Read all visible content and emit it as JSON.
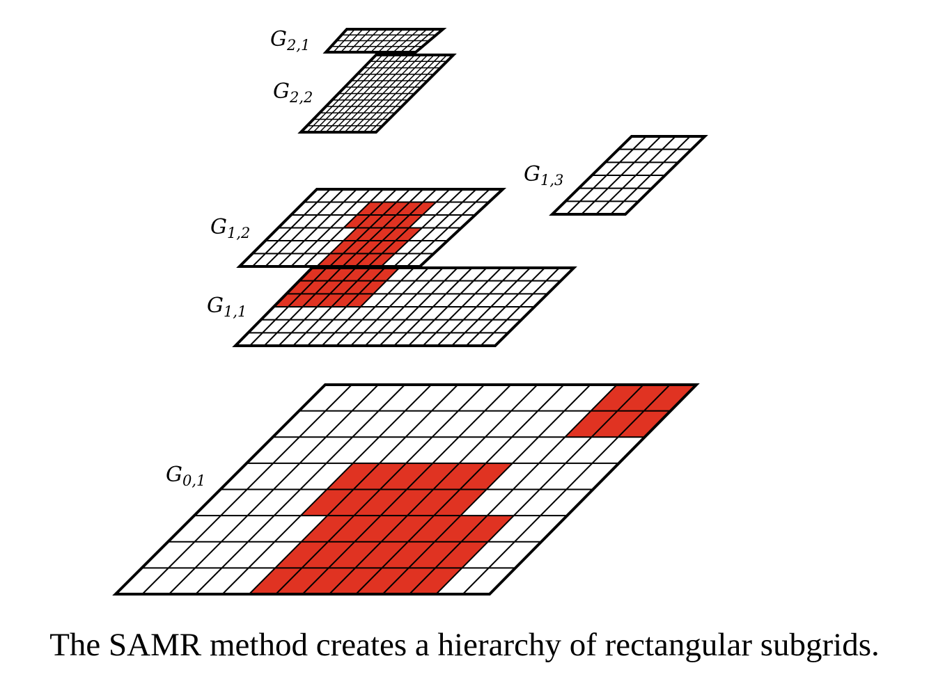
{
  "caption": "The SAMR method creates a hierarchy of rectangular subgrids.",
  "colors": {
    "refined": "#e03322",
    "cell": "#ffffff",
    "line": "#000000"
  },
  "grids": [
    {
      "id": "G0,1",
      "label": "G",
      "sub": "0,1",
      "cols": 14,
      "rows": 8,
      "refined": [
        {
          "c0": 4,
          "c1": 10,
          "r0": 3,
          "r1": 5
        },
        {
          "c0": 11,
          "c1": 14,
          "r0": 0,
          "r1": 2
        },
        {
          "c0": 5,
          "c1": 12,
          "r0": 5,
          "r1": 8
        }
      ]
    },
    {
      "id": "G1,1",
      "label": "G",
      "sub": "1,1",
      "cols": 18,
      "rows": 6,
      "refined": [
        {
          "c0": 0,
          "c1": 6,
          "r0": 0,
          "r1": 3
        }
      ]
    },
    {
      "id": "G1,2",
      "label": "G",
      "sub": "1,2",
      "cols": 14,
      "rows": 6,
      "refined": [
        {
          "c0": 5,
          "c1": 10,
          "r0": 1,
          "r1": 3
        },
        {
          "c0": 6,
          "c1": 11,
          "r0": 3,
          "r1": 6
        }
      ]
    },
    {
      "id": "G1,3",
      "label": "G",
      "sub": "1,3",
      "cols": 5,
      "rows": 6,
      "refined": []
    },
    {
      "id": "G2,1",
      "label": "G",
      "sub": "2,1",
      "cols": 12,
      "rows": 4,
      "refined": []
    },
    {
      "id": "G2,2",
      "label": "G",
      "sub": "2,2",
      "cols": 12,
      "rows": 12,
      "refined": []
    }
  ]
}
